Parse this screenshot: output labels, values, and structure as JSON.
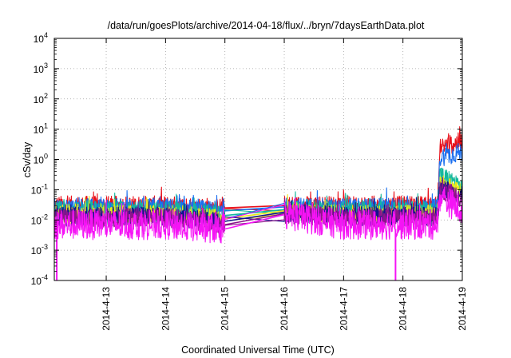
{
  "chart_data": {
    "type": "line",
    "title": "/data/run/goesPlots/archive/2014-04-18/flux/../bryn/7daysEarthData.plot",
    "xlabel": "Coordinated Universal Time (UTC)",
    "ylabel": "cSv/day",
    "y_scale": "log",
    "ylim": [
      0.0001,
      10000
    ],
    "y_ticks": [
      {
        "base": "10",
        "exp": "4"
      },
      {
        "base": "10",
        "exp": "3"
      },
      {
        "base": "10",
        "exp": "2"
      },
      {
        "base": "10",
        "exp": "1"
      },
      {
        "base": "10",
        "exp": "0"
      },
      {
        "base": "10",
        "exp": "-1"
      },
      {
        "base": "10",
        "exp": "-2"
      },
      {
        "base": "10",
        "exp": "-3"
      },
      {
        "base": "10",
        "exp": "-4"
      }
    ],
    "xlim": [
      "2014-04-12 03:00",
      "2014-04-19 00:00"
    ],
    "x_ticks": [
      "2014-4-13",
      "2014-4-14",
      "2014-4-15",
      "2014-4-16",
      "2014-4-17",
      "2014-4-18",
      "2014-4-19"
    ],
    "grid": true,
    "legend": "none",
    "data_gaps": [
      [
        "2014-04-15 00:00",
        "2014-04-16 00:00"
      ]
    ],
    "series": [
      {
        "color": "#e8101a",
        "values": [
          [
            "2014-04-12 03:00",
            0.03
          ],
          [
            "2014-04-13 00:00",
            0.03
          ],
          [
            "2014-04-14 00:00",
            0.03
          ],
          [
            "2014-04-15 00:00",
            0.025
          ],
          [
            "2014-04-16 00:00",
            0.03
          ],
          [
            "2014-04-17 00:00",
            0.03
          ],
          [
            "2014-04-18 00:00",
            0.03
          ],
          [
            "2014-04-18 14:00",
            0.03
          ],
          [
            "2014-04-18 15:00",
            2.5
          ],
          [
            "2014-04-19 00:00",
            4
          ]
        ]
      },
      {
        "color": "#1a6ff0",
        "values": [
          [
            "2014-04-12 03:00",
            0.025
          ],
          [
            "2014-04-13 00:00",
            0.025
          ],
          [
            "2014-04-14 00:00",
            0.025
          ],
          [
            "2014-04-15 00:00",
            0.02
          ],
          [
            "2014-04-16 00:00",
            0.027
          ],
          [
            "2014-04-17 00:00",
            0.025
          ],
          [
            "2014-04-18 00:00",
            0.025
          ],
          [
            "2014-04-18 14:00",
            0.025
          ],
          [
            "2014-04-18 15:00",
            1.2
          ],
          [
            "2014-04-19 00:00",
            1.8
          ]
        ]
      },
      {
        "color": "#14b89c",
        "values": [
          [
            "2014-04-12 03:00",
            0.02
          ],
          [
            "2014-04-13 00:00",
            0.02
          ],
          [
            "2014-04-14 00:00",
            0.02
          ],
          [
            "2014-04-15 00:00",
            0.014
          ],
          [
            "2014-04-16 00:00",
            0.022
          ],
          [
            "2014-04-17 00:00",
            0.02
          ],
          [
            "2014-04-18 00:00",
            0.02
          ],
          [
            "2014-04-18 14:00",
            0.02
          ],
          [
            "2014-04-18 15:00",
            0.3
          ],
          [
            "2014-04-19 00:00",
            0.13
          ]
        ]
      },
      {
        "color": "#e8e81a",
        "values": [
          [
            "2014-04-12 03:00",
            0.015
          ],
          [
            "2014-04-13 00:00",
            0.015
          ],
          [
            "2014-04-14 00:00",
            0.015
          ],
          [
            "2014-04-15 00:00",
            0.011
          ],
          [
            "2014-04-16 00:00",
            0.02
          ],
          [
            "2014-04-17 00:00",
            0.015
          ],
          [
            "2014-04-18 00:00",
            0.015
          ],
          [
            "2014-04-18 14:00",
            0.015
          ],
          [
            "2014-04-18 15:00",
            0.15
          ],
          [
            "2014-04-19 00:00",
            0.08
          ]
        ]
      },
      {
        "color": "#14148c",
        "values": [
          [
            "2014-04-12 03:00",
            0.013
          ],
          [
            "2014-04-13 00:00",
            0.013
          ],
          [
            "2014-04-14 00:00",
            0.013
          ],
          [
            "2014-04-15 00:00",
            0.009
          ],
          [
            "2014-04-16 00:00",
            0.018
          ],
          [
            "2014-04-17 00:00",
            0.013
          ],
          [
            "2014-04-18 00:00",
            0.013
          ],
          [
            "2014-04-18 14:00",
            0.013
          ],
          [
            "2014-04-18 15:00",
            0.12
          ],
          [
            "2014-04-19 00:00",
            0.06
          ]
        ]
      },
      {
        "color": "#8c148c",
        "values": [
          [
            "2014-04-12 03:00",
            0.012
          ],
          [
            "2014-04-13 00:00",
            0.012
          ],
          [
            "2014-04-14 00:00",
            0.012
          ],
          [
            "2014-04-15 00:00",
            0.007
          ],
          [
            "2014-04-16 00:00",
            0.016
          ],
          [
            "2014-04-17 00:00",
            0.012
          ],
          [
            "2014-04-18 00:00",
            0.012
          ],
          [
            "2014-04-18 14:00",
            0.012
          ],
          [
            "2014-04-18 15:00",
            0.1
          ],
          [
            "2014-04-19 00:00",
            0.05
          ]
        ]
      },
      {
        "color": "#f514f5",
        "values": [
          [
            "2014-04-12 03:00",
            0.007
          ],
          [
            "2014-04-13 00:00",
            0.007
          ],
          [
            "2014-04-14 00:00",
            0.007
          ],
          [
            "2014-04-15 00:00",
            0.005
          ],
          [
            "2014-04-16 00:00",
            0.015
          ],
          [
            "2014-04-17 00:00",
            0.007
          ],
          [
            "2014-04-18 00:00",
            0.007
          ],
          [
            "2014-04-18 14:00",
            0.007
          ],
          [
            "2014-04-18 15:00",
            0.06
          ],
          [
            "2014-04-19 00:00",
            0.02
          ]
        ]
      }
    ],
    "dropouts": [
      {
        "x": "2014-04-12 04:00",
        "y": 0.0001
      },
      {
        "x": "2014-04-17 21:00",
        "y": 0.0001
      }
    ]
  }
}
